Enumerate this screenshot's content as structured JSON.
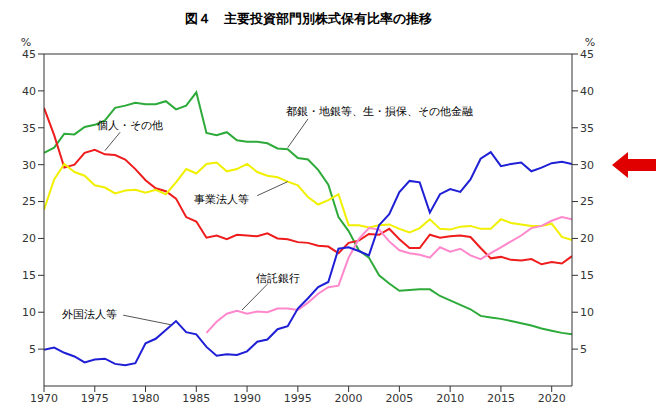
{
  "chart_data": {
    "type": "line",
    "title": "図４　主要投資部門別株式保有比率の推移",
    "ylabel": "%",
    "y2label": "%",
    "x": [
      1970,
      1971,
      1972,
      1973,
      1974,
      1975,
      1976,
      1977,
      1978,
      1979,
      1980,
      1981,
      1982,
      1983,
      1984,
      1985,
      1986,
      1987,
      1988,
      1989,
      1990,
      1991,
      1992,
      1993,
      1994,
      1995,
      1996,
      1997,
      1998,
      1999,
      2000,
      2001,
      2002,
      2003,
      2004,
      2005,
      2006,
      2007,
      2008,
      2009,
      2010,
      2011,
      2012,
      2013,
      2014,
      2015,
      2016,
      2017,
      2018,
      2019,
      2020,
      2021,
      2022
    ],
    "series": [
      {
        "name": "都銀・地銀等、生・損保、その他金融",
        "color": "#2eaa3a",
        "values": [
          31.6,
          32.3,
          34.2,
          34.1,
          35.1,
          35.4,
          36.0,
          37.7,
          38.0,
          38.4,
          38.2,
          38.2,
          38.6,
          37.5,
          38.0,
          39.8,
          34.3,
          34.0,
          34.4,
          33.3,
          33.1,
          33.1,
          32.9,
          32.2,
          32.1,
          30.9,
          30.7,
          29.3,
          27.3,
          22.9,
          21.0,
          18.4,
          17.4,
          15.0,
          13.9,
          12.9,
          13.0,
          13.1,
          13.1,
          12.2,
          11.6,
          11.0,
          10.4,
          9.5,
          9.3,
          9.1,
          8.8,
          8.5,
          8.2,
          7.8,
          7.5,
          7.2,
          7.0
        ]
      },
      {
        "name": "個人・その他",
        "color": "#ee1c1c",
        "values": [
          37.7,
          34.0,
          29.6,
          30.0,
          31.6,
          32.0,
          31.4,
          31.3,
          30.7,
          29.4,
          27.9,
          26.8,
          26.4,
          25.4,
          22.9,
          22.3,
          20.1,
          20.4,
          19.9,
          20.5,
          20.4,
          20.3,
          20.7,
          20.0,
          19.9,
          19.5,
          19.4,
          19.0,
          18.9,
          18.0,
          19.4,
          19.7,
          20.6,
          20.5,
          21.3,
          19.9,
          18.7,
          18.7,
          20.5,
          20.1,
          20.3,
          20.4,
          20.2,
          18.7,
          17.3,
          17.5,
          17.1,
          17.0,
          17.2,
          16.5,
          16.8,
          16.6,
          17.6
        ]
      },
      {
        "name": "事業法人等",
        "color": "#f0f000",
        "values": [
          23.9,
          28.0,
          30.1,
          29.0,
          28.5,
          27.2,
          26.9,
          26.1,
          26.5,
          26.6,
          26.2,
          26.6,
          26.0,
          27.6,
          29.4,
          28.8,
          30.1,
          30.3,
          29.1,
          29.4,
          30.1,
          29.0,
          28.5,
          28.3,
          27.7,
          27.2,
          25.6,
          24.6,
          25.2,
          26.0,
          21.8,
          21.8,
          21.5,
          21.8,
          21.9,
          21.3,
          20.8,
          21.4,
          22.6,
          21.3,
          21.2,
          21.6,
          21.7,
          21.3,
          21.3,
          22.6,
          22.1,
          21.9,
          21.7,
          21.7,
          22.0,
          20.2,
          19.8
        ]
      },
      {
        "name": "信託銀行",
        "color": "#ff88cc",
        "values": [
          null,
          null,
          null,
          null,
          null,
          null,
          null,
          null,
          null,
          null,
          null,
          null,
          null,
          null,
          null,
          null,
          7.2,
          8.7,
          9.8,
          10.2,
          9.8,
          10.1,
          10.0,
          10.5,
          10.5,
          10.3,
          11.3,
          12.5,
          13.4,
          13.6,
          17.4,
          19.9,
          21.4,
          21.2,
          19.6,
          18.4,
          18.0,
          17.8,
          17.4,
          18.8,
          18.2,
          18.6,
          17.7,
          17.2,
          18.0,
          18.8,
          19.6,
          20.4,
          21.4,
          21.7,
          22.4,
          22.9,
          22.6
        ]
      },
      {
        "name": "外国法人等",
        "color": "#1f1fd6",
        "values": [
          4.9,
          5.2,
          4.5,
          4.0,
          3.2,
          3.6,
          3.7,
          3.0,
          2.8,
          3.1,
          5.8,
          6.4,
          7.6,
          8.8,
          7.3,
          7.0,
          5.3,
          4.1,
          4.3,
          4.2,
          4.7,
          6.0,
          6.3,
          7.7,
          8.1,
          10.5,
          11.9,
          13.4,
          14.1,
          18.6,
          18.8,
          18.3,
          17.7,
          21.8,
          23.3,
          26.3,
          27.8,
          27.6,
          23.5,
          26.0,
          26.7,
          26.3,
          28.0,
          30.8,
          31.7,
          29.8,
          30.1,
          30.3,
          29.1,
          29.6,
          30.2,
          30.4,
          30.1
        ]
      }
    ],
    "xlim": [
      1970,
      2022
    ],
    "xticks": [
      1970,
      1975,
      1980,
      1985,
      1990,
      1995,
      2000,
      2005,
      2010,
      2015,
      2020
    ],
    "ylim": [
      0,
      45
    ],
    "yticks": [
      5,
      10,
      15,
      20,
      25,
      30,
      35,
      40,
      45
    ],
    "y2lim": [
      0,
      45
    ],
    "y2ticks": [
      5,
      10,
      15,
      20,
      25,
      30,
      35,
      40,
      45
    ],
    "grid": false
  }
}
